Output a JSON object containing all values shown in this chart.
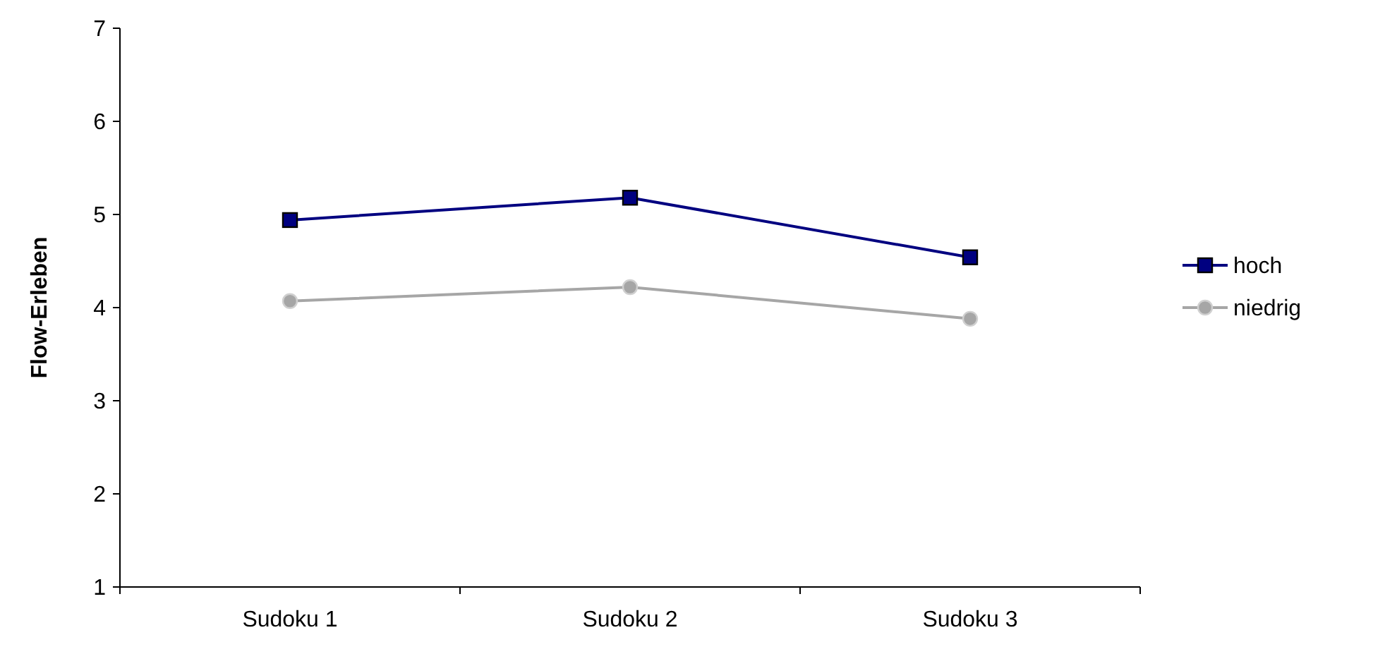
{
  "chart_data": {
    "type": "line",
    "ylabel": "Flow-Erleben",
    "categories": [
      "Sudoku 1",
      "Sudoku 2",
      "Sudoku 3"
    ],
    "series": [
      {
        "name": "hoch",
        "color": "#000080",
        "marker": "square",
        "values": [
          4.94,
          5.18,
          4.54
        ]
      },
      {
        "name": "niedrig",
        "color": "#a6a6a6",
        "marker": "circle",
        "values": [
          4.07,
          4.22,
          3.88
        ]
      }
    ],
    "ylim": [
      1,
      7
    ],
    "yticks": [
      1,
      2,
      3,
      4,
      5,
      6,
      7
    ],
    "grid": false,
    "legend": "right"
  }
}
